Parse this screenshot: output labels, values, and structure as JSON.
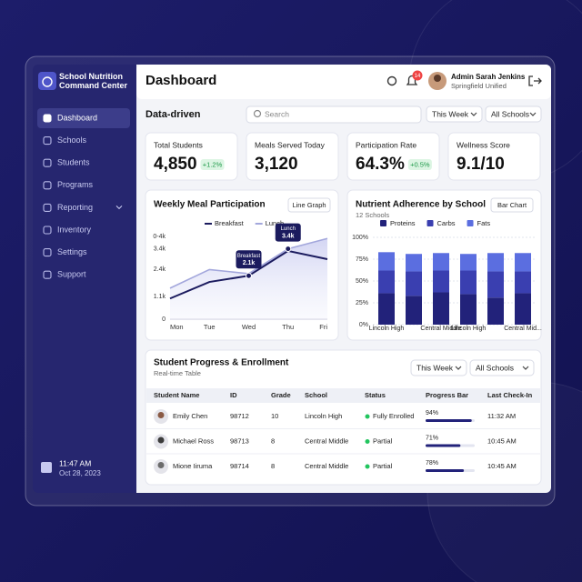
{
  "sidebar": {
    "brand": "School Nutrition Command Center",
    "nav": [
      "Dashboard",
      "Schools",
      "Students",
      "Programs",
      "Reporting",
      "Inventory",
      "Settings",
      "Support"
    ],
    "time": "11:47 AM",
    "date": "Oct 28, 2023"
  },
  "header": {
    "title": "Dashboard",
    "badge": "14",
    "user": "Admin Sarah Jenkins",
    "org": "Springfield Unified"
  },
  "toolbar": {
    "label": "Data-driven",
    "search": "Search",
    "period": "This Week",
    "school": "All Schools"
  },
  "kpis": [
    {
      "label": "Total Students",
      "value": "4,850",
      "delta": "+1.2%"
    },
    {
      "label": "Meals Served Today",
      "value": "3,120"
    },
    {
      "label": "Participation Rate",
      "value": "64.3%",
      "delta": "+0.5%"
    },
    {
      "label": "Wellness Score",
      "value": "9.1/10"
    }
  ],
  "chart_data": [
    {
      "type": "line",
      "title": "Weekly Meal Participation",
      "button": "Line Graph",
      "categories": [
        "Mon",
        "Tue",
        "Wed",
        "Thu",
        "Fri"
      ],
      "series": [
        {
          "name": "Breakfast",
          "color": "#1b1b5e",
          "values": [
            1000,
            1800,
            2100,
            3300,
            2900
          ],
          "value_labels": [
            null,
            null,
            "2.1k",
            null,
            null
          ]
        },
        {
          "name": "Lunch",
          "color": "#a3a7dc",
          "values": [
            1500,
            2400,
            2200,
            3400,
            3900
          ],
          "value_labels": [
            null,
            null,
            null,
            "3.4k",
            null
          ]
        }
      ],
      "ylim": [
        0,
        4000
      ],
      "yticks": [
        0,
        {
          "value": 1100,
          "label": "1.1k"
        },
        {
          "value": 2400,
          "label": "2.4k"
        },
        {
          "value": 3400,
          "label": "3.4k"
        },
        {
          "value": 4000,
          "label": "0-4k"
        }
      ],
      "grid": false,
      "legend": "top"
    },
    {
      "type": "stacked_bar",
      "title": "Nutrient Adherence by School",
      "subtitle": "12 Schools",
      "button": "Bar Chart",
      "categories": [
        "Lincoln High",
        null,
        "Central Middle",
        "Lincoln High",
        null,
        "Central Mid..."
      ],
      "series": [
        {
          "name": "Proteins",
          "color": "#22227a",
          "values": [
            36,
            33,
            37,
            35,
            31,
            36
          ]
        },
        {
          "name": "Carbs",
          "color": "#3a3fb0",
          "values": [
            26,
            28,
            25,
            27,
            30,
            25
          ]
        },
        {
          "name": "Fats",
          "color": "#5b6ee0",
          "values": [
            21,
            20,
            20,
            19,
            21,
            21
          ]
        }
      ],
      "ylim": [
        0,
        100
      ],
      "yticks": [
        {
          "value": 0,
          "label": "0%"
        },
        {
          "value": 25,
          "label": "25%"
        },
        {
          "value": 50,
          "label": "50%"
        },
        {
          "value": 75,
          "label": "75%"
        },
        {
          "value": 100,
          "label": "100%"
        }
      ],
      "grid": true,
      "legend": "top"
    }
  ],
  "table": {
    "title": "Student Progress & Enrollment",
    "subtitle": "Real-time Table",
    "period": "This Week",
    "school": "All Schools",
    "columns": [
      "Student Name",
      "ID",
      "Grade",
      "School",
      "Status",
      "Progress Bar",
      "Last Check-In"
    ],
    "rows": [
      {
        "name": "Emily Chen",
        "id": "98712",
        "grade": "10",
        "school": "Lincoln High",
        "status": "Fully Enrolled",
        "progress": {
          "value": 94,
          "label": "94%"
        },
        "last": "11:32 AM"
      },
      {
        "name": "Michael Ross",
        "id": "98713",
        "grade": "8",
        "school": "Central Middle",
        "status": "Partial",
        "progress": {
          "value": 71,
          "label": "71%"
        },
        "last": "10:45 AM"
      },
      {
        "name": "Mione Iiruma",
        "id": "98714",
        "grade": "8",
        "school": "Central Middle",
        "status": "Partial",
        "progress": {
          "value": 78,
          "label": "78%"
        },
        "last": "10:45 AM"
      }
    ]
  }
}
